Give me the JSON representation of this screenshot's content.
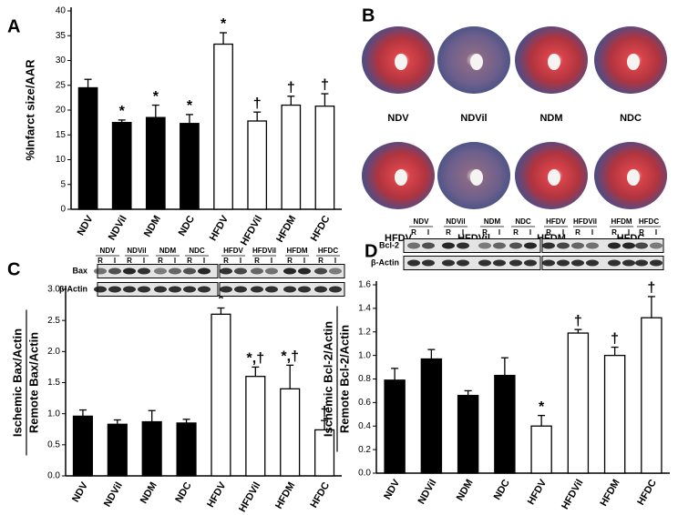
{
  "chart_data": [
    {
      "type": "bar",
      "panel": "A",
      "ylabel": "%Infarct size/AAR",
      "categories": [
        "NDV",
        "NDVil",
        "NDM",
        "NDC",
        "HFDV",
        "HFDVil",
        "HFDM",
        "HFDC"
      ],
      "values": [
        24.5,
        17.5,
        18.5,
        17.3,
        33.3,
        17.8,
        21.0,
        20.8
      ],
      "errors": [
        1.7,
        0.5,
        2.5,
        1.8,
        2.3,
        1.8,
        1.8,
        2.5
      ],
      "annotations": [
        null,
        "*",
        "*",
        "*",
        "*",
        "†",
        "†",
        "†"
      ],
      "colors": [
        "#000000",
        "#000000",
        "#000000",
        "#000000",
        "#ffffff",
        "#ffffff",
        "#ffffff",
        "#ffffff"
      ],
      "ylim": [
        0,
        40
      ],
      "yticks": [
        0,
        5,
        10,
        15,
        20,
        25,
        30,
        35,
        40
      ]
    },
    {
      "type": "bar",
      "panel": "C",
      "ylabel_numerator": "Ischemic Bax/Actin",
      "ylabel_denominator": "Remote Bax/Actin",
      "categories": [
        "NDV",
        "NDVil",
        "NDM",
        "NDC",
        "HFDV",
        "HFDVil",
        "HFDM",
        "HFDC"
      ],
      "values": [
        0.96,
        0.83,
        0.87,
        0.85,
        2.6,
        1.6,
        1.4,
        0.74
      ],
      "errors": [
        0.1,
        0.07,
        0.18,
        0.06,
        0.1,
        0.15,
        0.38,
        0.15
      ],
      "annotations": [
        null,
        null,
        null,
        null,
        "*",
        "*,†",
        "*,†",
        "†"
      ],
      "colors": [
        "#000000",
        "#000000",
        "#000000",
        "#000000",
        "#ffffff",
        "#ffffff",
        "#ffffff",
        "#ffffff"
      ],
      "ylim": [
        0,
        3.0
      ],
      "yticks": [
        {
          "value": 0,
          "label": "0.0"
        },
        0.5,
        {
          "value": 1,
          "label": "1.0"
        },
        1.5,
        {
          "value": 2,
          "label": "2.0"
        },
        2.5,
        {
          "value": 3,
          "label": "3.0"
        }
      ],
      "blot": {
        "rows": [
          "Bax",
          "β-Actin"
        ],
        "lanes": [
          "R",
          "I"
        ]
      }
    },
    {
      "type": "bar",
      "panel": "D",
      "ylabel_numerator": "Ischemic Bcl-2/Actin",
      "ylabel_denominator": "Remote Bcl-2/Actin",
      "categories": [
        "NDV",
        "NDVil",
        "NDM",
        "NDC",
        "HFDV",
        "HFDVil",
        "HFDM",
        "HFDC"
      ],
      "values": [
        0.79,
        0.97,
        0.66,
        0.83,
        0.4,
        1.19,
        1.0,
        1.32
      ],
      "errors": [
        0.1,
        0.08,
        0.04,
        0.15,
        0.09,
        0.03,
        0.07,
        0.18
      ],
      "annotations": [
        null,
        null,
        null,
        null,
        "*",
        "†",
        "†",
        "†"
      ],
      "colors": [
        "#000000",
        "#000000",
        "#000000",
        "#000000",
        "#ffffff",
        "#ffffff",
        "#ffffff",
        "#ffffff"
      ],
      "ylim": [
        0,
        1.6
      ],
      "yticks": [
        {
          "value": 0,
          "label": "0.0"
        },
        0.2,
        0.4,
        0.6,
        0.8,
        {
          "value": 1,
          "label": "1.0"
        },
        1.2,
        1.4,
        1.6
      ],
      "blot": {
        "rows": [
          "Bcl-2",
          "β-Actin"
        ],
        "lanes": [
          "R",
          "I"
        ]
      }
    }
  ],
  "panel_b": {
    "panel": "B",
    "images": [
      "NDV",
      "NDVil",
      "NDM",
      "NDC",
      "HFDV",
      "HFDVil",
      "HFDM",
      "HFDC"
    ]
  }
}
